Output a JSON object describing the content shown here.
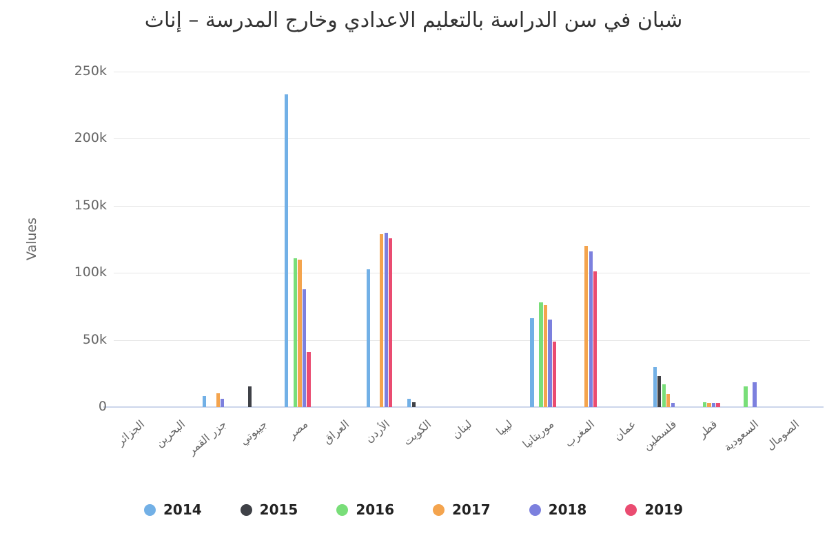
{
  "chart_data": {
    "type": "bar",
    "title": "شبان في سن الدراسة بالتعليم الاعدادي وخارج المدرسة – إناث",
    "xlabel": "",
    "ylabel": "Values",
    "ylim": [
      0,
      250000
    ],
    "grid": true,
    "legend_position": "bottom",
    "yticks": [
      {
        "label": "0",
        "value": 0
      },
      {
        "label": "50k",
        "value": 50000
      },
      {
        "label": "100k",
        "value": 100000
      },
      {
        "label": "150k",
        "value": 150000
      },
      {
        "label": "200k",
        "value": 200000
      },
      {
        "label": "250k",
        "value": 250000
      }
    ],
    "categories": [
      "الجزائر",
      "البحرين",
      "جزر القمر",
      "جيبوتي",
      "مصر",
      "العراق",
      "الأردن",
      "الكويت",
      "لبنان",
      "ليبيا",
      "موريتانيا",
      "المغرب",
      "عمان",
      "فلسطين",
      "قطر",
      "السعودية",
      "الصومال"
    ],
    "series": [
      {
        "name": "2014",
        "color": "#72B0E6",
        "values": [
          null,
          null,
          8400,
          null,
          233000,
          null,
          102500,
          6000,
          null,
          null,
          66000,
          null,
          null,
          30000,
          null,
          null,
          null
        ]
      },
      {
        "name": "2015",
        "color": "#3F4147",
        "values": [
          null,
          null,
          null,
          15500,
          null,
          null,
          null,
          3500,
          null,
          null,
          null,
          null,
          null,
          23000,
          null,
          null,
          null
        ]
      },
      {
        "name": "2016",
        "color": "#79DE79",
        "values": [
          null,
          null,
          null,
          null,
          111000,
          null,
          null,
          null,
          null,
          null,
          78000,
          null,
          null,
          17000,
          3500,
          15500,
          null
        ]
      },
      {
        "name": "2017",
        "color": "#F4A44E",
        "values": [
          null,
          null,
          10500,
          null,
          110000,
          null,
          129000,
          null,
          null,
          null,
          76000,
          120000,
          null,
          10000,
          3000,
          null,
          null
        ]
      },
      {
        "name": "2018",
        "color": "#7C80DE",
        "values": [
          null,
          null,
          6000,
          null,
          88000,
          null,
          130000,
          null,
          null,
          null,
          65000,
          116000,
          null,
          3000,
          3000,
          18500,
          null
        ]
      },
      {
        "name": "2019",
        "color": "#EA4C71",
        "values": [
          null,
          null,
          null,
          null,
          41000,
          null,
          126000,
          null,
          null,
          null,
          49000,
          101000,
          null,
          null,
          3000,
          null,
          null
        ]
      }
    ]
  },
  "colors": {
    "grid": "#e6e6e6",
    "axis_line": "#ccd6eb",
    "title_text": "#333333",
    "axis_text": "#666666",
    "legend_text": "#222222",
    "background": "#ffffff"
  }
}
